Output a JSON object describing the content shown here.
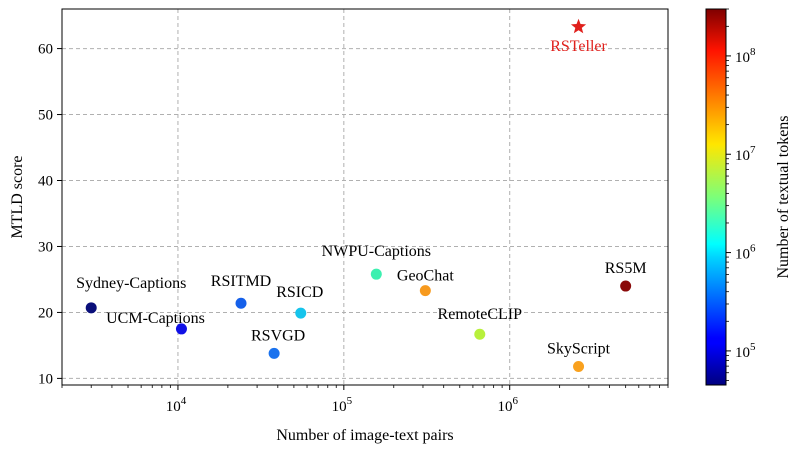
{
  "chart_data": {
    "type": "scatter",
    "title": "",
    "xlabel": "Number of image-text pairs",
    "ylabel": "MTLD score",
    "x_scale": "log",
    "xlim": [
      2000,
      9000000
    ],
    "ylim": [
      9,
      66
    ],
    "x_ticks": [
      {
        "value": 10000,
        "base": "10",
        "exp": "4"
      },
      {
        "value": 100000,
        "base": "10",
        "exp": "5"
      },
      {
        "value": 1000000,
        "base": "10",
        "exp": "6"
      }
    ],
    "y_ticks": [
      10,
      20,
      30,
      40,
      50,
      60
    ],
    "grid": true,
    "colorbar": {
      "label": "Number of textual tokens",
      "scale": "log",
      "colormap": "jet",
      "range": [
        45000,
        300000000
      ],
      "ticks": [
        {
          "value": 100000,
          "base": "10",
          "exp": "5"
        },
        {
          "value": 1000000,
          "base": "10",
          "exp": "6"
        },
        {
          "value": 10000000,
          "base": "10",
          "exp": "7"
        },
        {
          "value": 100000000,
          "base": "10",
          "exp": "8"
        }
      ]
    },
    "points": [
      {
        "name": "Sydney-Captions",
        "x": 3000,
        "y": 20.7,
        "color": "#0a0f7a",
        "marker": "circle"
      },
      {
        "name": "UCM-Captions",
        "x": 10500,
        "y": 17.5,
        "color": "#1010e6",
        "marker": "circle"
      },
      {
        "name": "RSITMD",
        "x": 24000,
        "y": 21.4,
        "color": "#1560ea",
        "marker": "circle"
      },
      {
        "name": "RSVGD",
        "x": 38000,
        "y": 13.8,
        "color": "#1a72ee",
        "marker": "circle"
      },
      {
        "name": "RSICD",
        "x": 55000,
        "y": 19.9,
        "color": "#16c4ec",
        "marker": "circle"
      },
      {
        "name": "NWPU-Captions",
        "x": 157000,
        "y": 25.8,
        "color": "#3df0b0",
        "marker": "circle"
      },
      {
        "name": "GeoChat",
        "x": 310000,
        "y": 23.3,
        "color": "#f79a1e",
        "marker": "circle"
      },
      {
        "name": "RemoteCLIP",
        "x": 660000,
        "y": 16.7,
        "color": "#b8f03c",
        "marker": "circle"
      },
      {
        "name": "SkyScript",
        "x": 2600000,
        "y": 11.8,
        "color": "#f9a11e",
        "marker": "circle"
      },
      {
        "name": "RS5M",
        "x": 5000000,
        "y": 24.0,
        "color": "#8a0a0a",
        "marker": "circle"
      },
      {
        "name": "RSTeller",
        "x": 2600000,
        "y": 63.3,
        "color": "#e0201c",
        "marker": "star",
        "label_color": "#e0201c"
      }
    ]
  }
}
